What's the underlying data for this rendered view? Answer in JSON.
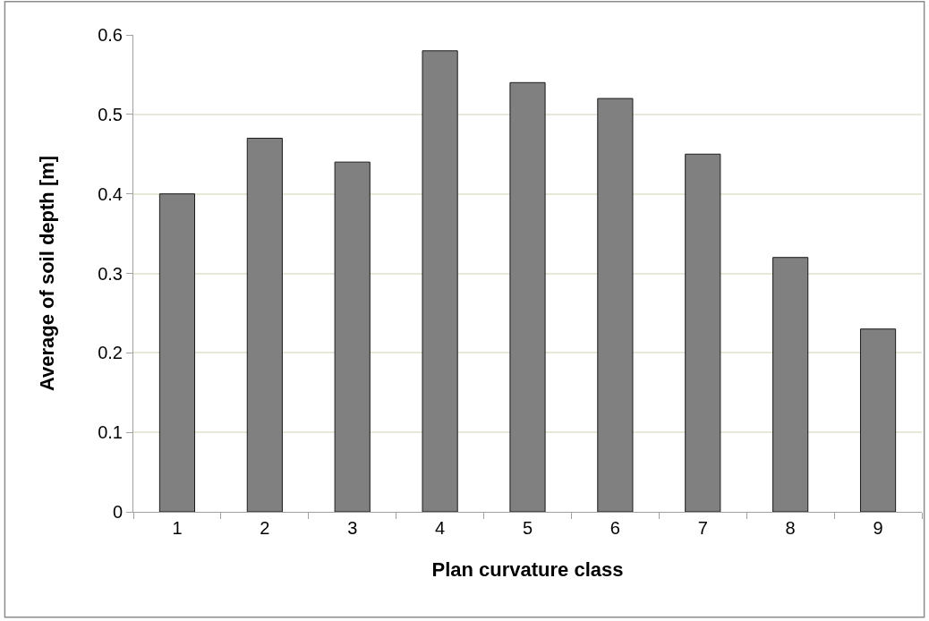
{
  "chart_data": {
    "type": "bar",
    "xlabel": "Plan curvature class",
    "ylabel": "Average of soil depth [m]",
    "categories": [
      "1",
      "2",
      "3",
      "4",
      "5",
      "6",
      "7",
      "8",
      "9"
    ],
    "values": [
      0.4,
      0.47,
      0.44,
      0.58,
      0.54,
      0.52,
      0.45,
      0.32,
      0.23
    ],
    "color": "#808080",
    "ylim": [
      0,
      0.6
    ],
    "yticks": [
      0,
      0.1,
      0.2,
      0.3,
      0.4,
      0.5,
      0.6
    ],
    "grid": "y"
  }
}
